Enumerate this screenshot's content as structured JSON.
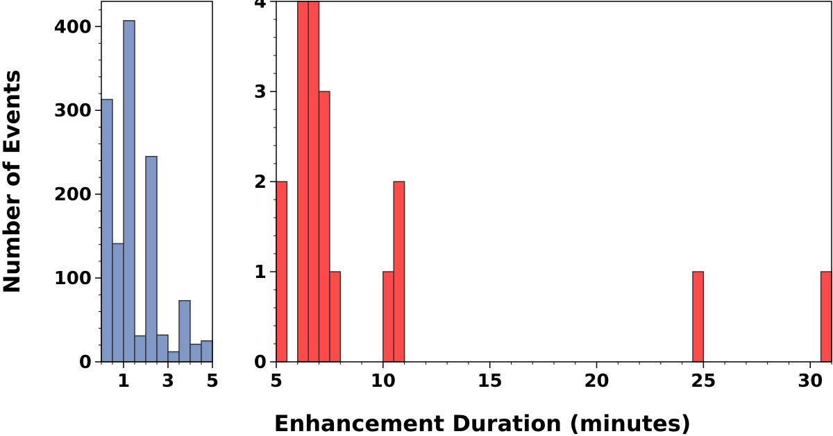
{
  "figure": {
    "ylabel": "Number of Events",
    "xlabel": "Enhancement Duration (minutes)"
  },
  "chart_data": [
    {
      "type": "bar",
      "name": "left-histogram",
      "color": "#7f98c6",
      "edge_color": "#333333",
      "xlim": [
        0,
        5
      ],
      "ylim": [
        0,
        430
      ],
      "x_ticks": [
        1,
        3,
        5
      ],
      "y_ticks": [
        0,
        100,
        200,
        300,
        400
      ],
      "bins": [
        {
          "x0": 0.0,
          "x1": 0.5,
          "value": 313
        },
        {
          "x0": 0.5,
          "x1": 1.0,
          "value": 141
        },
        {
          "x0": 1.0,
          "x1": 1.5,
          "value": 407
        },
        {
          "x0": 1.5,
          "x1": 2.0,
          "value": 31
        },
        {
          "x0": 2.0,
          "x1": 2.5,
          "value": 245
        },
        {
          "x0": 2.5,
          "x1": 3.0,
          "value": 32
        },
        {
          "x0": 3.0,
          "x1": 3.5,
          "value": 12
        },
        {
          "x0": 3.5,
          "x1": 4.0,
          "value": 73
        },
        {
          "x0": 4.0,
          "x1": 4.5,
          "value": 21
        },
        {
          "x0": 4.5,
          "x1": 5.0,
          "value": 25
        }
      ]
    },
    {
      "type": "bar",
      "name": "right-histogram",
      "color": "#ff4a4a",
      "edge_color": "#333333",
      "xlim": [
        5,
        31
      ],
      "ylim": [
        0,
        4
      ],
      "x_ticks": [
        5,
        10,
        15,
        20,
        25,
        30
      ],
      "y_ticks": [
        0,
        1,
        2,
        3,
        4
      ],
      "bins": [
        {
          "x0": 5.0,
          "x1": 5.5,
          "value": 2
        },
        {
          "x0": 6.0,
          "x1": 6.5,
          "value": 4
        },
        {
          "x0": 6.5,
          "x1": 7.0,
          "value": 4
        },
        {
          "x0": 7.0,
          "x1": 7.5,
          "value": 3
        },
        {
          "x0": 7.5,
          "x1": 8.0,
          "value": 1
        },
        {
          "x0": 10.0,
          "x1": 10.5,
          "value": 1
        },
        {
          "x0": 10.5,
          "x1": 11.0,
          "value": 2
        },
        {
          "x0": 24.5,
          "x1": 25.0,
          "value": 1
        },
        {
          "x0": 30.5,
          "x1": 31.0,
          "value": 1
        }
      ]
    }
  ]
}
